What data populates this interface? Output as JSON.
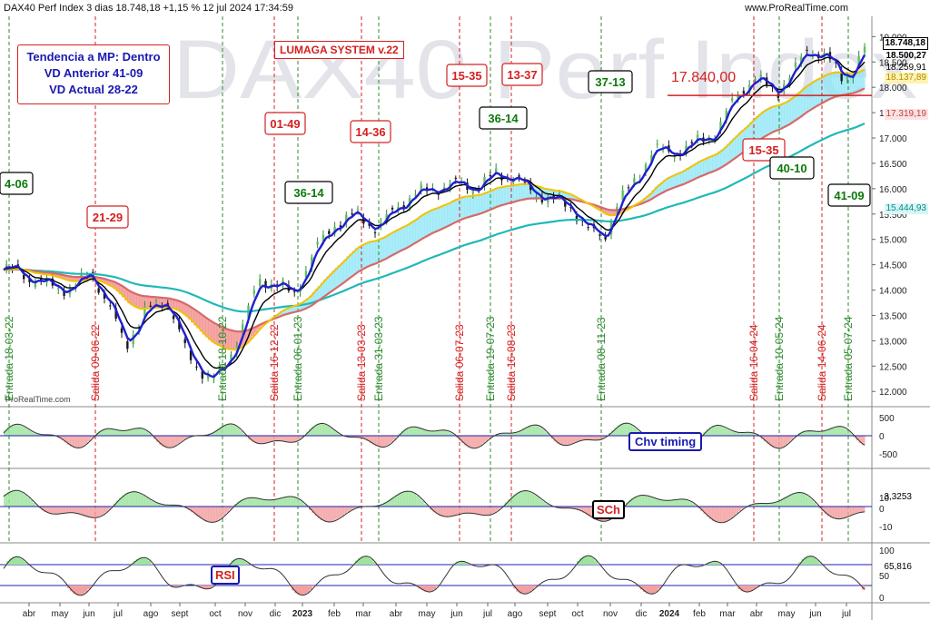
{
  "header": {
    "title": "DAX40 Perf Index 3 dias 18.748,18 +1,15 % 12 jul 2024 17:34:59",
    "source": "www.ProRealTime.com",
    "watermark": "DAX40 Perf Index",
    "prorealtime_mark": "ProRealTime.com"
  },
  "info_box": {
    "line1": "Tendencia a MP: Dentro",
    "line2": "VD Anterior 41-09",
    "line3": "VD Actual 28-22"
  },
  "system_label": "LUMAGA SYSTEM v.22",
  "price_labels": {
    "last": "18.748,18",
    "p2": "18.500,27",
    "p3": "18.259,91",
    "p4": "18.137,89",
    "p5": "17.319,19",
    "p6": "15.444,93",
    "level_17840": "17.840,00"
  },
  "colors": {
    "buy_line": "#2e8b2e",
    "sell_line": "#d42020",
    "blue_ma": "#1f1fd0",
    "black_ma": "#000000",
    "yellow_ma": "#f2c200",
    "brown_ma": "#d46a6a",
    "cyan_ma": "#20b8b8",
    "cloud_bull": "#8fe6f5",
    "cloud_bear": "#f08a8a"
  },
  "chart_data": {
    "type": "line",
    "title": "DAX40 Perf Index 3 dias",
    "x_axis_ticks": [
      "abr",
      "may",
      "jun",
      "jul",
      "ago",
      "sept",
      "oct",
      "nov",
      "dic",
      "2023",
      "feb",
      "mar",
      "abr",
      "may",
      "jun",
      "jul",
      "ago",
      "sept",
      "oct",
      "nov",
      "dic",
      "2024",
      "feb",
      "mar",
      "abr",
      "may",
      "jun",
      "jul"
    ],
    "y_axis_ticks": [
      "19.000",
      "18.500",
      "18.000",
      "17.500",
      "17.000",
      "16.500",
      "16.000",
      "15.500",
      "15.000",
      "14.500",
      "14.000",
      "13.500",
      "13.000",
      "12.500",
      "12.000"
    ],
    "ylim": [
      11700,
      19400
    ],
    "price_series": {
      "name": "DAX40 Perf Index",
      "dates": [
        "2022-03-18",
        "2022-04-01",
        "2022-04-20",
        "2022-05-10",
        "2022-05-31",
        "2022-06-20",
        "2022-07-05",
        "2022-07-25",
        "2022-08-15",
        "2022-09-05",
        "2022-09-28",
        "2022-10-12",
        "2022-10-26",
        "2022-11-15",
        "2022-12-05",
        "2022-12-20",
        "2023-01-10",
        "2023-01-30",
        "2023-02-20",
        "2023-03-13",
        "2023-03-31",
        "2023-04-20",
        "2023-05-10",
        "2023-06-01",
        "2023-06-20",
        "2023-07-10",
        "2023-07-31",
        "2023-08-16",
        "2023-09-05",
        "2023-09-25",
        "2023-10-10",
        "2023-10-26",
        "2023-11-08",
        "2023-11-28",
        "2023-12-15",
        "2024-01-05",
        "2024-01-25",
        "2024-02-15",
        "2024-03-05",
        "2024-03-25",
        "2024-04-16",
        "2024-05-06",
        "2024-05-16",
        "2024-06-05",
        "2024-06-20",
        "2024-07-01",
        "2024-07-12"
      ],
      "values": [
        14400,
        14200,
        14100,
        14000,
        14350,
        13600,
        12900,
        13600,
        13800,
        12700,
        12200,
        12500,
        13100,
        14200,
        14100,
        13900,
        14800,
        15300,
        15500,
        15200,
        15600,
        15900,
        16000,
        16100,
        16000,
        16300,
        16200,
        15900,
        15800,
        15600,
        15200,
        15000,
        15700,
        16200,
        16800,
        16700,
        16900,
        17100,
        17800,
        18200,
        17900,
        18400,
        18750,
        18600,
        18200,
        18300,
        18748
      ]
    },
    "signals": [
      {
        "label": "Entrada 18-03-22",
        "type": "buy"
      },
      {
        "label": "Salida 09-06-22",
        "type": "sell"
      },
      {
        "label": "Entrada 18-10-22",
        "type": "buy"
      },
      {
        "label": "Salida 16-12-22",
        "type": "sell"
      },
      {
        "label": "Entrada 06-01-23",
        "type": "buy"
      },
      {
        "label": "Salida 13-03-23",
        "type": "sell"
      },
      {
        "label": "Entrada 31-03-23",
        "type": "buy"
      },
      {
        "label": "Salida 06-07-23",
        "type": "sell"
      },
      {
        "label": "Entrada 19-07-23",
        "type": "buy"
      },
      {
        "label": "Salida 16-08-23",
        "type": "sell"
      },
      {
        "label": "Entrada 08-11-23",
        "type": "buy"
      },
      {
        "label": "Salida 16-04-24",
        "type": "sell"
      },
      {
        "label": "Entrada 10-05-24",
        "type": "buy"
      },
      {
        "label": "Salida 14-06-24",
        "type": "sell"
      },
      {
        "label": "Entrada 05-07-24",
        "type": "buy"
      }
    ],
    "counts": [
      {
        "label": "4-06",
        "type": "buy"
      },
      {
        "label": "21-29",
        "type": "sell"
      },
      {
        "label": "01-49",
        "type": "sell"
      },
      {
        "label": "36-14",
        "type": "buy"
      },
      {
        "label": "14-36",
        "type": "sell"
      },
      {
        "label": "15-35",
        "type": "sell"
      },
      {
        "label": "36-14",
        "type": "buy"
      },
      {
        "label": "13-37",
        "type": "sell"
      },
      {
        "label": "37-13",
        "type": "buy"
      },
      {
        "label": "15-35",
        "type": "sell"
      },
      {
        "label": "40-10",
        "type": "buy"
      },
      {
        "label": "41-09",
        "type": "buy"
      }
    ],
    "indicators": [
      {
        "name": "Chv timing",
        "ticks": [
          "500",
          "0",
          "-500"
        ],
        "last": ""
      },
      {
        "name": "SCh",
        "ticks": [
          "10",
          "0",
          "-10"
        ],
        "last": "3,3253"
      },
      {
        "name": "RSI",
        "ticks": [
          "100",
          "50",
          "0"
        ],
        "last": "65,816"
      }
    ]
  }
}
